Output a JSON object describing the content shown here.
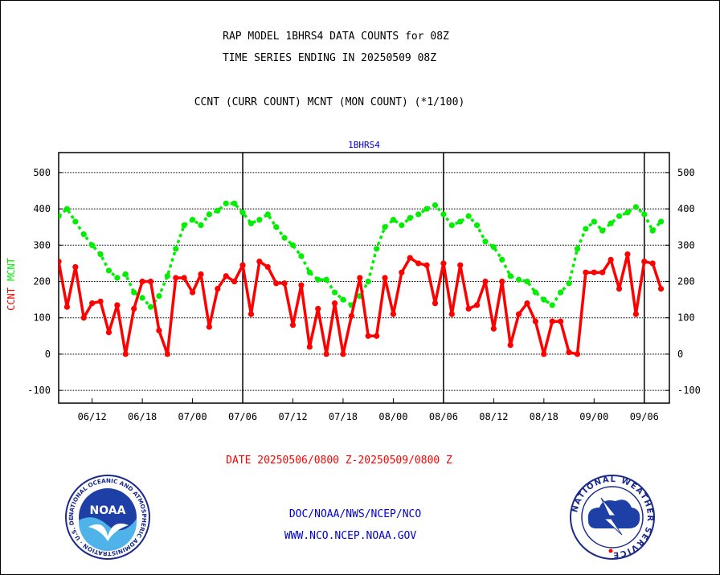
{
  "header": {
    "line1": "RAP MODEL 1BHRS4 DATA COUNTS for 08Z",
    "line2": "TIME SERIES ENDING IN 20250509 08Z",
    "line3": "CCNT (CURR COUNT) MCNT (MON COUNT) (*1/100)"
  },
  "footer": {
    "date_range": "DATE 20250506/0800 Z-20250509/0800 Z",
    "org": "DOC/NOAA/NWS/NCEP/NCO",
    "url": "WWW.NCO.NCEP.NOAA.GOV"
  },
  "logos": {
    "noaa_text": "NOAA",
    "noaa_ring": "NATIONAL OCEANIC AND ATMOSPHERIC ADMINISTRATION · U.S. DEPARTMENT OF COMMERCE ·",
    "nws_ring": "NATIONAL WEATHER SERVICE"
  },
  "colors": {
    "ccnt": "#ff0000",
    "mcnt": "#00ee00",
    "title": "#0000cc",
    "axis": "#000000"
  },
  "chart_data": {
    "type": "line",
    "title": "1BHRS4",
    "ylabel_ccnt": "CCNT",
    "ylabel_mcnt": "MCNT",
    "ylim": [
      -135,
      555
    ],
    "yticks": [
      -100,
      0,
      100,
      200,
      300,
      400,
      500
    ],
    "x_range": [
      0,
      73
    ],
    "x_ticks": [
      {
        "x": 4,
        "label": "06/12"
      },
      {
        "x": 10,
        "label": "06/18"
      },
      {
        "x": 16,
        "label": "07/00"
      },
      {
        "x": 22,
        "label": "07/06"
      },
      {
        "x": 28,
        "label": "07/12"
      },
      {
        "x": 34,
        "label": "07/18"
      },
      {
        "x": 40,
        "label": "08/00"
      },
      {
        "x": 46,
        "label": "08/06"
      },
      {
        "x": 52,
        "label": "08/12"
      },
      {
        "x": 58,
        "label": "08/18"
      },
      {
        "x": 64,
        "label": "09/00"
      },
      {
        "x": 70,
        "label": "09/06"
      }
    ],
    "day_dividers": [
      22,
      46,
      70
    ],
    "grid": true,
    "series": [
      {
        "name": "CCNT",
        "values": [
          255,
          130,
          240,
          100,
          140,
          145,
          60,
          135,
          0,
          125,
          200,
          200,
          65,
          0,
          210,
          210,
          170,
          220,
          75,
          180,
          215,
          200,
          245,
          110,
          255,
          240,
          195,
          195,
          80,
          190,
          20,
          125,
          0,
          140,
          0,
          105,
          210,
          50,
          50,
          210,
          110,
          225,
          265,
          250,
          245,
          140,
          250,
          110,
          245,
          125,
          135,
          200,
          70,
          200,
          25,
          110,
          140,
          90,
          0,
          90,
          90,
          5,
          0,
          225,
          225,
          225,
          260,
          180,
          275,
          110,
          255,
          250,
          180
        ]
      },
      {
        "name": "MCNT",
        "values": [
          380,
          400,
          365,
          330,
          300,
          275,
          230,
          210,
          220,
          170,
          155,
          130,
          160,
          215,
          290,
          355,
          370,
          355,
          385,
          395,
          415,
          415,
          390,
          360,
          370,
          385,
          350,
          320,
          300,
          270,
          225,
          205,
          205,
          170,
          150,
          135,
          160,
          200,
          290,
          350,
          370,
          355,
          375,
          385,
          400,
          410,
          385,
          355,
          365,
          380,
          355,
          310,
          295,
          260,
          215,
          205,
          200,
          170,
          150,
          135,
          170,
          195,
          290,
          345,
          365,
          340,
          360,
          380,
          390,
          405,
          385,
          340,
          365
        ]
      }
    ]
  }
}
